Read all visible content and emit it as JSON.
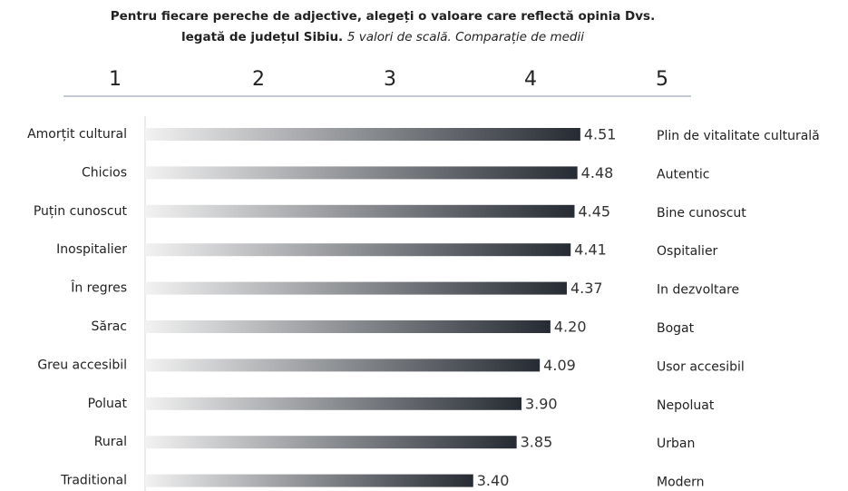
{
  "chart_data": {
    "type": "bar",
    "title_line_1": "Pentru fiecare pereche de adjective, alegeți o valoare care reflectă opinia Dvs.",
    "title_line_2_bold": "legată de județul Sibiu.",
    "title_line_2_italic": "5 valori de scală. Comparație de medii",
    "scale_header": [
      1,
      2,
      3,
      4,
      5
    ],
    "categories": [
      "Amorțit cultural",
      "Chicios",
      "Puțin cunoscut",
      "Inospitalier",
      "În regres",
      "Sărac",
      "Greu accesibil",
      "Poluat",
      "Rural",
      "Traditional"
    ],
    "right_labels": [
      "Plin de vitalitate culturală",
      "Autentic",
      "Bine cunoscut",
      "Ospitalier",
      "In dezvoltare",
      "Bogat",
      "Usor accesibil",
      "Nepoluat",
      "Urban",
      "Modern"
    ],
    "values": [
      4.51,
      4.48,
      4.45,
      4.41,
      4.37,
      4.2,
      4.09,
      3.9,
      3.85,
      3.4
    ],
    "value_labels": [
      "4.51",
      "4.48",
      "4.45",
      "4.41",
      "4.37",
      "4.20",
      "4.09",
      "3.90",
      "3.85",
      "3.40"
    ],
    "color_start": "#f2f2f2",
    "color_end": "#262b33",
    "xlim": [
      0,
      5
    ]
  }
}
